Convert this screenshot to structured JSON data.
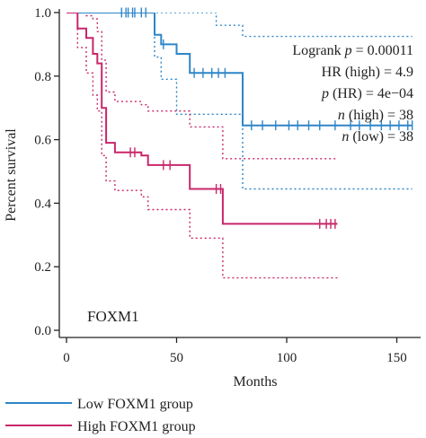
{
  "chart_data": {
    "type": "line",
    "subtype": "kaplan-meier",
    "title": "",
    "xlabel": "Months",
    "ylabel": "Percent survival",
    "xlim": [
      0,
      160
    ],
    "ylim": [
      0,
      1.0
    ],
    "x_ticks": [
      0,
      50,
      100,
      150
    ],
    "y_ticks": [
      0.0,
      0.2,
      0.4,
      0.6,
      0.8,
      1.0
    ],
    "x_tick_labels": [
      "0",
      "50",
      "100",
      "150"
    ],
    "y_tick_labels": [
      "0.0",
      "0.2",
      "0.4",
      "0.6",
      "0.8",
      "1.0"
    ],
    "grid": false,
    "legend_position": "bottom-left",
    "gene_label": "FOXM1",
    "annotations": [
      {
        "prefix": "Logrank ",
        "italic": "p",
        "suffix": " = 0.00011"
      },
      {
        "prefix": "HR (high) = 4.9",
        "italic": "",
        "suffix": ""
      },
      {
        "prefix": "",
        "italic": "p",
        "suffix": " (HR) = 4e−04"
      },
      {
        "prefix": "",
        "italic": "n",
        "suffix": " (high) = 38"
      },
      {
        "prefix": "",
        "italic": "n",
        "suffix": " (low) = 38"
      }
    ],
    "series": [
      {
        "name": "Low FOXM1 group",
        "color": "#2e86c8",
        "steps": [
          [
            0,
            1.0
          ],
          [
            40,
            0.93
          ],
          [
            43,
            0.9
          ],
          [
            50,
            0.87
          ],
          [
            56,
            0.81
          ],
          [
            80,
            0.645
          ],
          [
            157,
            0.645
          ]
        ],
        "censor_x": [
          25,
          27,
          28,
          30,
          31,
          34,
          36,
          44,
          58,
          62,
          66,
          69,
          72,
          84,
          89,
          95,
          101,
          105,
          110,
          115,
          122,
          129,
          133,
          138,
          143,
          147,
          151,
          155,
          157
        ],
        "ci_upper": [
          [
            0,
            1.0
          ],
          [
            40,
            1.0
          ],
          [
            58,
            1.0
          ],
          [
            68,
            0.96
          ],
          [
            80,
            0.925
          ],
          [
            157,
            0.925
          ]
        ],
        "ci_lower": [
          [
            0,
            1.0
          ],
          [
            38,
            1.0
          ],
          [
            40,
            0.86
          ],
          [
            43,
            0.79
          ],
          [
            50,
            0.68
          ],
          [
            80,
            0.445
          ],
          [
            157,
            0.445
          ]
        ]
      },
      {
        "name": "High FOXM1 group",
        "color": "#c8276a",
        "steps": [
          [
            0,
            1.0
          ],
          [
            5,
            0.95
          ],
          [
            9,
            0.92
          ],
          [
            12,
            0.87
          ],
          [
            14,
            0.84
          ],
          [
            16,
            0.7
          ],
          [
            18,
            0.59
          ],
          [
            22,
            0.56
          ],
          [
            34,
            0.55
          ],
          [
            37,
            0.52
          ],
          [
            56,
            0.445
          ],
          [
            71,
            0.335
          ],
          [
            123,
            0.335
          ]
        ],
        "censor_x": [
          29,
          31,
          44,
          47,
          68,
          70,
          115,
          118,
          120,
          122
        ],
        "ci_upper": [
          [
            0,
            1.0
          ],
          [
            5,
            1.0
          ],
          [
            9,
            0.99
          ],
          [
            12,
            0.98
          ],
          [
            14,
            0.94
          ],
          [
            16,
            0.85
          ],
          [
            18,
            0.75
          ],
          [
            22,
            0.72
          ],
          [
            34,
            0.71
          ],
          [
            37,
            0.69
          ],
          [
            56,
            0.64
          ],
          [
            71,
            0.54
          ],
          [
            123,
            0.54
          ]
        ],
        "ci_lower": [
          [
            0,
            1.0
          ],
          [
            5,
            0.89
          ],
          [
            9,
            0.81
          ],
          [
            12,
            0.74
          ],
          [
            14,
            0.69
          ],
          [
            16,
            0.55
          ],
          [
            18,
            0.47
          ],
          [
            22,
            0.44
          ],
          [
            34,
            0.42
          ],
          [
            37,
            0.38
          ],
          [
            56,
            0.29
          ],
          [
            71,
            0.165
          ],
          [
            123,
            0.165
          ]
        ]
      }
    ]
  }
}
